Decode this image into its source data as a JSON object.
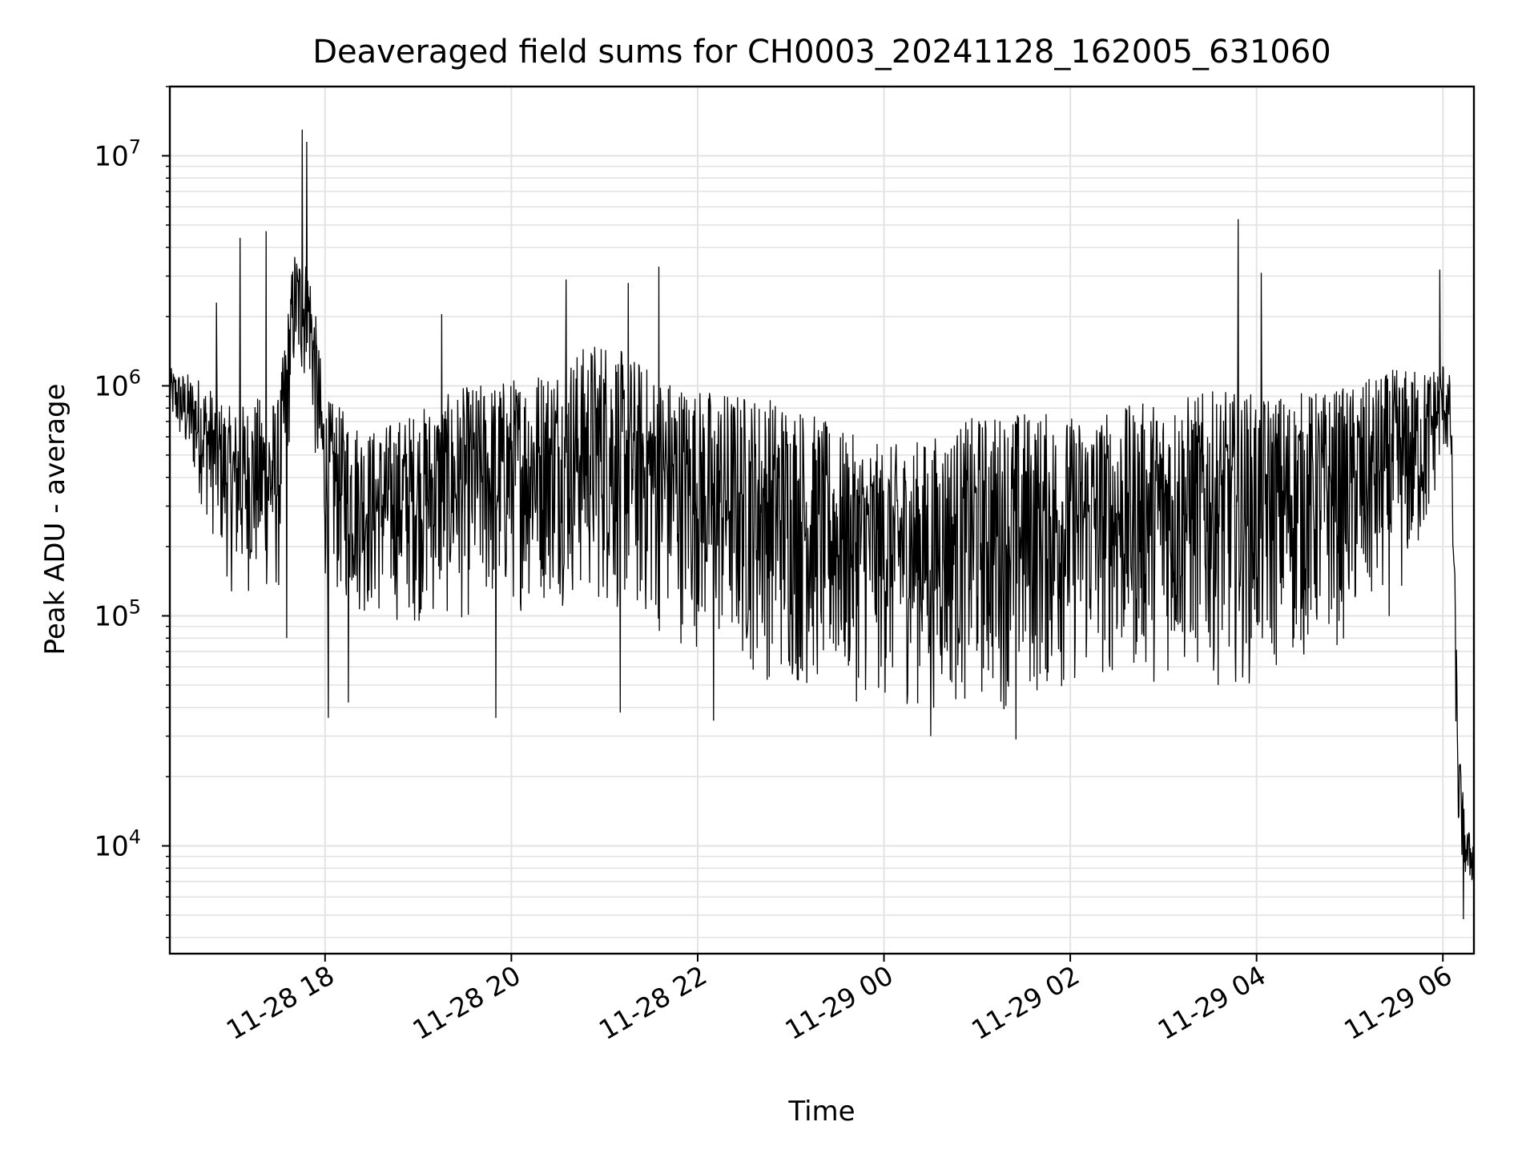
{
  "chart_data": {
    "type": "line",
    "title": "Deaveraged field sums for CH0003_20241128_162005_631060",
    "xlabel": "Time",
    "ylabel": "Peak ADU - average",
    "yscale": "log",
    "grid": true,
    "legend": "none",
    "line_color": "#000000",
    "xlim": [
      "2024-11-28 16:20",
      "2024-11-29 06:20"
    ],
    "ylim": [
      3400,
      20000000
    ],
    "x_ticks": [
      {
        "t": "2024-11-28 18:00",
        "label": "11-28 18"
      },
      {
        "t": "2024-11-28 20:00",
        "label": "11-28 20"
      },
      {
        "t": "2024-11-28 22:00",
        "label": "11-28 22"
      },
      {
        "t": "2024-11-29 00:00",
        "label": "11-29 00"
      },
      {
        "t": "2024-11-29 02:00",
        "label": "11-29 02"
      },
      {
        "t": "2024-11-29 04:00",
        "label": "11-29 04"
      },
      {
        "t": "2024-11-29 06:00",
        "label": "11-29 06"
      }
    ],
    "y_ticks": [
      {
        "value": 10000,
        "base": "10",
        "exp": "4"
      },
      {
        "value": 100000,
        "base": "10",
        "exp": "5"
      },
      {
        "value": 1000000,
        "base": "10",
        "exp": "6"
      },
      {
        "value": 10000000,
        "base": "10",
        "exp": "7"
      }
    ],
    "series": [
      {
        "envelope_x": [
          "2024-11-28 16:20",
          "2024-11-28 16:40",
          "2024-11-28 17:00",
          "2024-11-28 17:15",
          "2024-11-28 17:30",
          "2024-11-28 17:40",
          "2024-11-28 17:50",
          "2024-11-28 18:00",
          "2024-11-28 18:30",
          "2024-11-28 19:00",
          "2024-11-28 19:30",
          "2024-11-28 20:00",
          "2024-11-28 20:30",
          "2024-11-28 21:00",
          "2024-11-28 21:30",
          "2024-11-28 22:00",
          "2024-11-28 22:30",
          "2024-11-28 23:00",
          "2024-11-28 23:30",
          "2024-11-29 00:00",
          "2024-11-29 00:30",
          "2024-11-29 01:00",
          "2024-11-29 01:30",
          "2024-11-29 02:00",
          "2024-11-29 02:30",
          "2024-11-29 03:00",
          "2024-11-29 03:30",
          "2024-11-29 04:00",
          "2024-11-29 04:30",
          "2024-11-29 05:00",
          "2024-11-29 05:30",
          "2024-11-29 05:50",
          "2024-11-29 06:00",
          "2024-11-29 06:05",
          "2024-11-29 06:10",
          "2024-11-29 06:15",
          "2024-11-29 06:20"
        ],
        "upper": [
          1200000,
          1100000,
          800000,
          900000,
          900000,
          4000000,
          3500000,
          900000,
          650000,
          800000,
          1000000,
          1100000,
          1300000,
          1700000,
          1200000,
          1000000,
          950000,
          900000,
          650000,
          550000,
          600000,
          750000,
          800000,
          750000,
          800000,
          900000,
          950000,
          950000,
          950000,
          1000000,
          1200000,
          1200000,
          1300000,
          1100000,
          30000,
          12000,
          11000
        ],
        "lower": [
          700000,
          300000,
          120000,
          120000,
          110000,
          1000000,
          900000,
          120000,
          90000,
          90000,
          90000,
          100000,
          110000,
          100000,
          80000,
          70000,
          55000,
          45000,
          42000,
          40000,
          38000,
          38000,
          38000,
          45000,
          50000,
          50000,
          50000,
          48000,
          60000,
          75000,
          100000,
          200000,
          500000,
          400000,
          9000,
          6500,
          6500
        ],
        "spikes": [
          {
            "t": "2024-11-28 16:50",
            "value": 2300000
          },
          {
            "t": "2024-11-28 17:05",
            "value": 4400000
          },
          {
            "t": "2024-11-28 17:22",
            "value": 4700000
          },
          {
            "t": "2024-11-28 17:35",
            "value": 80000
          },
          {
            "t": "2024-11-28 17:45",
            "value": 13000000
          },
          {
            "t": "2024-11-28 17:48",
            "value": 11500000
          },
          {
            "t": "2024-11-28 18:02",
            "value": 36000
          },
          {
            "t": "2024-11-28 18:15",
            "value": 42000
          },
          {
            "t": "2024-11-28 19:15",
            "value": 2050000
          },
          {
            "t": "2024-11-28 19:50",
            "value": 36000
          },
          {
            "t": "2024-11-28 20:35",
            "value": 2900000
          },
          {
            "t": "2024-11-28 21:10",
            "value": 38000
          },
          {
            "t": "2024-11-28 21:15",
            "value": 2800000
          },
          {
            "t": "2024-11-28 21:35",
            "value": 3300000
          },
          {
            "t": "2024-11-28 22:10",
            "value": 35000
          },
          {
            "t": "2024-11-29 00:30",
            "value": 30000
          },
          {
            "t": "2024-11-29 01:25",
            "value": 29000
          },
          {
            "t": "2024-11-29 03:48",
            "value": 5300000
          },
          {
            "t": "2024-11-29 04:03",
            "value": 3100000
          },
          {
            "t": "2024-11-29 05:58",
            "value": 3200000
          },
          {
            "t": "2024-11-29 06:13",
            "value": 4800
          }
        ]
      }
    ]
  }
}
